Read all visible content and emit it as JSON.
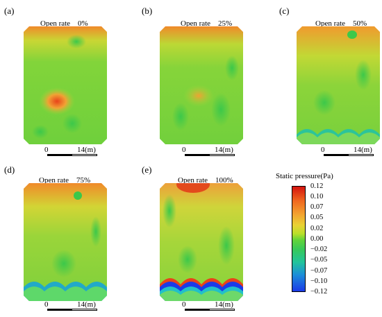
{
  "panels": [
    {
      "letter": "(a)",
      "open_rate": "Open rate    0%"
    },
    {
      "letter": "(b)",
      "open_rate": "Open rate    25%"
    },
    {
      "letter": "(c)",
      "open_rate": "Open rate    50%"
    },
    {
      "letter": "(d)",
      "open_rate": "Open rate    75%"
    },
    {
      "letter": "(e)",
      "open_rate": "Open rate    100%"
    }
  ],
  "scale_bar": {
    "start": "0",
    "end": "14(m)"
  },
  "colorbar": {
    "title": "Static pressure(Pa)",
    "ticks": [
      "0.12",
      "0.10",
      "0.07",
      "0.05",
      "0.02",
      "0.00",
      "−0.02",
      "−0.05",
      "−0.07",
      "−0.10",
      "−0.12"
    ],
    "colors": [
      "#d4140f",
      "#f06a20",
      "#f2a530",
      "#e9d234",
      "#62d43a",
      "#22c49a",
      "#1b3ae8"
    ]
  }
}
